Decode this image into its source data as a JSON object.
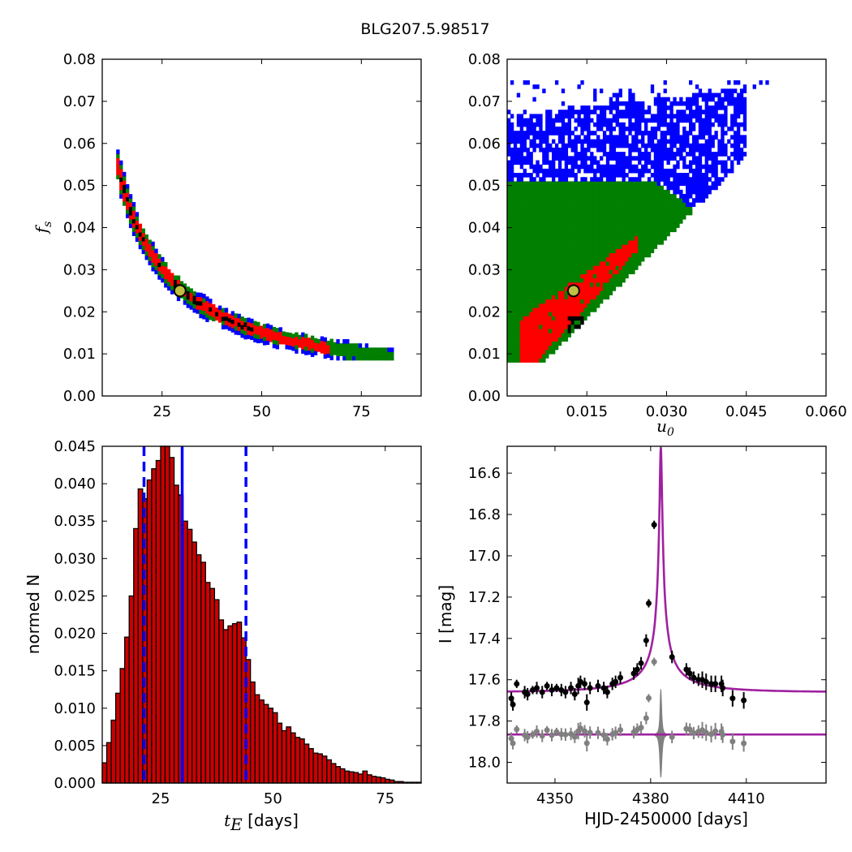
{
  "figure": {
    "title": "BLG207.5.98517"
  },
  "colors": {
    "blue": "#0000ff",
    "green": "#007f00",
    "red": "#ff0000",
    "black": "#000000",
    "hist_fill": "#cc0000",
    "magenta": "#a020a0",
    "gray": "#808080",
    "marker": "#bfbf40"
  },
  "chart_data": [
    {
      "id": "fs_vs_tE",
      "type": "heatmap",
      "ylabel": "f",
      "ylabel_sub": "s",
      "xlim": [
        10,
        90
      ],
      "ylim": [
        0.0,
        0.08
      ],
      "xticks": [
        25,
        50,
        75
      ],
      "xtick_labels": [
        "25",
        "50",
        "75"
      ],
      "yticks": [
        0.0,
        0.01,
        0.02,
        0.03,
        0.04,
        0.05,
        0.06,
        0.07,
        0.08
      ],
      "ytick_labels": [
        "0.00",
        "0.01",
        "0.02",
        "0.03",
        "0.04",
        "0.05",
        "0.06",
        "0.07",
        "0.08"
      ],
      "relation": "fs approx 0.73 / tE",
      "tE_range": [
        13.5,
        83
      ],
      "confidence_levels": [
        "blue",
        "green",
        "red",
        "black"
      ],
      "best_fit": {
        "tE": 29.5,
        "fs": 0.025
      }
    },
    {
      "id": "fs_vs_u0",
      "type": "heatmap",
      "xlabel": "u",
      "xlabel_sub": "0",
      "xlim": [
        0.0,
        0.06
      ],
      "ylim": [
        0.0,
        0.08
      ],
      "xticks": [
        0.015,
        0.03,
        0.045,
        0.06
      ],
      "xtick_labels": [
        "0.015",
        "0.030",
        "0.045",
        "0.060"
      ],
      "yticks": [
        0.0,
        0.01,
        0.02,
        0.03,
        0.04,
        0.05,
        0.06,
        0.07,
        0.08
      ],
      "ytick_labels": [
        "0.00",
        "0.01",
        "0.02",
        "0.03",
        "0.04",
        "0.05",
        "0.06",
        "0.07",
        "0.08"
      ],
      "confidence_levels": [
        "blue",
        "green",
        "red",
        "black"
      ],
      "best_fit": {
        "u0": 0.0125,
        "fs": 0.025
      }
    },
    {
      "id": "tE_histogram",
      "type": "bar",
      "xlabel": "t",
      "xlabel_sub": "E",
      "xlabel_unit": " [days]",
      "ylabel": "normed N",
      "xlim": [
        12,
        83
      ],
      "ylim": [
        0.0,
        0.045
      ],
      "xticks": [
        25,
        50,
        75
      ],
      "xtick_labels": [
        "25",
        "50",
        "75"
      ],
      "yticks": [
        0.0,
        0.005,
        0.01,
        0.015,
        0.02,
        0.025,
        0.03,
        0.035,
        0.04,
        0.045
      ],
      "ytick_labels": [
        "0.000",
        "0.005",
        "0.010",
        "0.015",
        "0.020",
        "0.025",
        "0.030",
        "0.035",
        "0.040",
        "0.045"
      ],
      "bin_start": 12.0,
      "bin_width": 1.0,
      "values": [
        0.0027,
        0.0054,
        0.0084,
        0.012,
        0.0153,
        0.0195,
        0.025,
        0.034,
        0.0393,
        0.038,
        0.0405,
        0.042,
        0.0431,
        0.045,
        0.047,
        0.0435,
        0.0398,
        0.0385,
        0.035,
        0.0339,
        0.0322,
        0.0305,
        0.0295,
        0.0268,
        0.026,
        0.0245,
        0.0218,
        0.0205,
        0.021,
        0.0213,
        0.0215,
        0.0194,
        0.0165,
        0.0135,
        0.0118,
        0.0111,
        0.0105,
        0.01,
        0.0094,
        0.008,
        0.007,
        0.0075,
        0.0067,
        0.0061,
        0.0059,
        0.0052,
        0.0046,
        0.004,
        0.0039,
        0.0036,
        0.0031,
        0.0026,
        0.0022,
        0.0019,
        0.0016,
        0.0015,
        0.0014,
        0.0012,
        0.0016,
        0.0011,
        0.0009,
        0.0008,
        0.0007,
        0.0005,
        0.0004,
        0.0002,
        0.0002,
        0.0001,
        0.0001,
        0.0001,
        0.0001
      ],
      "vlines": [
        {
          "x": 21.3,
          "style": "dashed"
        },
        {
          "x": 29.8,
          "style": "solid"
        },
        {
          "x": 44.0,
          "style": "dashed"
        }
      ]
    },
    {
      "id": "light_curve",
      "type": "scatter",
      "xlabel": "HJD-2450000 [days]",
      "ylabel": "I [mag]",
      "xlim": [
        4335,
        4435
      ],
      "ylim": [
        18.1,
        16.47
      ],
      "xticks": [
        4350,
        4380,
        4410
      ],
      "xtick_labels": [
        "4350",
        "4380",
        "4410"
      ],
      "yticks": [
        16.6,
        16.8,
        17.0,
        17.2,
        17.4,
        17.6,
        17.8,
        18.0
      ],
      "ytick_labels": [
        "16.6",
        "16.8",
        "17.0",
        "17.2",
        "17.4",
        "17.6",
        "17.8",
        "18.0"
      ],
      "model": {
        "t0": 4383.2,
        "tE": 29.8,
        "u0": 0.0125,
        "fs": 0.025,
        "baseline": 17.66
      },
      "residual_baseline": 17.865,
      "points": [
        {
          "t": 4336.3,
          "mag": 17.69,
          "err": 0.03
        },
        {
          "t": 4336.8,
          "mag": 17.72,
          "err": 0.03
        },
        {
          "t": 4338.0,
          "mag": 17.62,
          "err": 0.02
        },
        {
          "t": 4340.5,
          "mag": 17.66,
          "err": 0.03
        },
        {
          "t": 4341.4,
          "mag": 17.67,
          "err": 0.03
        },
        {
          "t": 4343.0,
          "mag": 17.65,
          "err": 0.02
        },
        {
          "t": 4344.3,
          "mag": 17.64,
          "err": 0.03
        },
        {
          "t": 4346.0,
          "mag": 17.66,
          "err": 0.03
        },
        {
          "t": 4347.5,
          "mag": 17.63,
          "err": 0.02
        },
        {
          "t": 4349.0,
          "mag": 17.65,
          "err": 0.03
        },
        {
          "t": 4350.5,
          "mag": 17.64,
          "err": 0.02
        },
        {
          "t": 4352.0,
          "mag": 17.65,
          "err": 0.03
        },
        {
          "t": 4353.3,
          "mag": 17.66,
          "err": 0.03
        },
        {
          "t": 4355.0,
          "mag": 17.64,
          "err": 0.03
        },
        {
          "t": 4356.2,
          "mag": 17.67,
          "err": 0.03
        },
        {
          "t": 4357.3,
          "mag": 17.63,
          "err": 0.04
        },
        {
          "t": 4358.0,
          "mag": 17.61,
          "err": 0.03
        },
        {
          "t": 4359.3,
          "mag": 17.62,
          "err": 0.03
        },
        {
          "t": 4360.0,
          "mag": 17.71,
          "err": 0.04
        },
        {
          "t": 4361.0,
          "mag": 17.64,
          "err": 0.03
        },
        {
          "t": 4363.5,
          "mag": 17.63,
          "err": 0.03
        },
        {
          "t": 4365.3,
          "mag": 17.64,
          "err": 0.03
        },
        {
          "t": 4366.4,
          "mag": 17.66,
          "err": 0.03
        },
        {
          "t": 4368.0,
          "mag": 17.62,
          "err": 0.03
        },
        {
          "t": 4369.0,
          "mag": 17.61,
          "err": 0.03
        },
        {
          "t": 4370.5,
          "mag": 17.59,
          "err": 0.03
        },
        {
          "t": 4374.7,
          "mag": 17.57,
          "err": 0.03
        },
        {
          "t": 4375.8,
          "mag": 17.55,
          "err": 0.03
        },
        {
          "t": 4377.0,
          "mag": 17.52,
          "err": 0.03
        },
        {
          "t": 4378.6,
          "mag": 17.41,
          "err": 0.03
        },
        {
          "t": 4379.4,
          "mag": 17.23,
          "err": 0.02
        },
        {
          "t": 4381.1,
          "mag": 16.85,
          "err": 0.02
        },
        {
          "t": 4386.7,
          "mag": 17.49,
          "err": 0.03
        },
        {
          "t": 4391.2,
          "mag": 17.55,
          "err": 0.03
        },
        {
          "t": 4392.3,
          "mag": 17.57,
          "err": 0.03
        },
        {
          "t": 4393.5,
          "mag": 17.59,
          "err": 0.03
        },
        {
          "t": 4395.0,
          "mag": 17.6,
          "err": 0.03
        },
        {
          "t": 4396.2,
          "mag": 17.6,
          "err": 0.04
        },
        {
          "t": 4397.4,
          "mag": 17.61,
          "err": 0.04
        },
        {
          "t": 4399.0,
          "mag": 17.62,
          "err": 0.04
        },
        {
          "t": 4400.3,
          "mag": 17.62,
          "err": 0.04
        },
        {
          "t": 4402.6,
          "mag": 17.64,
          "err": 0.04
        },
        {
          "t": 4402.2,
          "mag": 17.62,
          "err": 0.04
        },
        {
          "t": 4405.7,
          "mag": 17.69,
          "err": 0.04
        },
        {
          "t": 4409.2,
          "mag": 17.7,
          "err": 0.04
        }
      ]
    }
  ]
}
